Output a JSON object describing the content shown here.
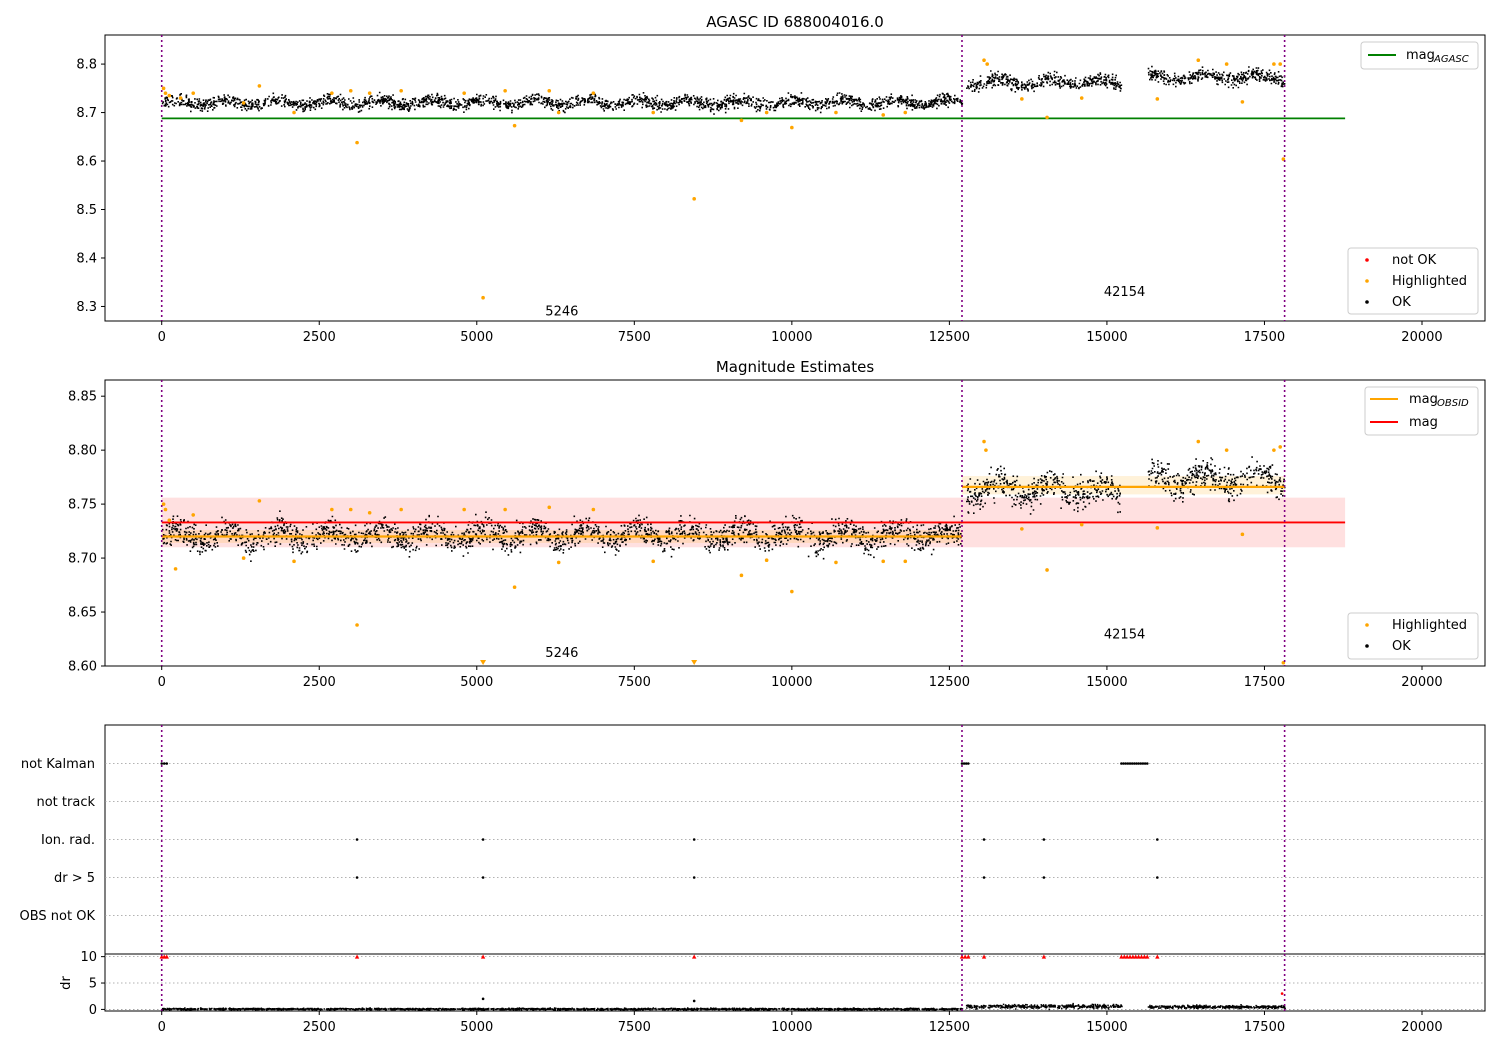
{
  "figure": {
    "background": "#ffffff"
  },
  "chart_data": [
    {
      "type": "scatter",
      "title": "AGASC ID 688004016.0",
      "xlim": [
        -900,
        21000
      ],
      "ylim": [
        8.27,
        8.86
      ],
      "x_ticks": [
        0,
        2500,
        5000,
        7500,
        10000,
        12500,
        15000,
        17500,
        20000
      ],
      "y_ticks": [
        8.3,
        8.4,
        8.5,
        8.6,
        8.7,
        8.8
      ],
      "y_tick_labels": [
        "8.3",
        "8.4",
        "8.5",
        "8.6",
        "8.7",
        "8.8"
      ],
      "grid": false,
      "obsid_boundaries": [
        0,
        12700,
        17820
      ],
      "obsid_labels": [
        {
          "text": "5246",
          "x": 6350,
          "y": 8.29
        },
        {
          "text": "42154",
          "x": 15280,
          "y": 8.33
        }
      ],
      "mag_agasc": 8.688,
      "mag_agasc_range": [
        0,
        18780
      ],
      "segments": [
        {
          "x": [
            0,
            12700
          ],
          "center": 8.722,
          "spread": 0.012
        },
        {
          "x": [
            12760,
            15230
          ],
          "center": 8.764,
          "spread": 0.014
        },
        {
          "x": [
            15640,
            17820
          ],
          "center": 8.774,
          "spread": 0.013
        }
      ],
      "highlighted": [
        [
          30,
          8.75
        ],
        [
          60,
          8.74
        ],
        [
          120,
          8.735
        ],
        [
          300,
          8.73
        ],
        [
          500,
          8.74
        ],
        [
          1300,
          8.72
        ],
        [
          1550,
          8.755
        ],
        [
          2100,
          8.7
        ],
        [
          2700,
          8.74
        ],
        [
          3000,
          8.745
        ],
        [
          3100,
          8.638
        ],
        [
          3300,
          8.74
        ],
        [
          3800,
          8.745
        ],
        [
          4800,
          8.74
        ],
        [
          5100,
          8.318
        ],
        [
          5450,
          8.745
        ],
        [
          5600,
          8.673
        ],
        [
          6150,
          8.745
        ],
        [
          6300,
          8.7
        ],
        [
          6850,
          8.74
        ],
        [
          7800,
          8.7
        ],
        [
          8450,
          8.522
        ],
        [
          9200,
          8.684
        ],
        [
          9600,
          8.7
        ],
        [
          10000,
          8.669
        ],
        [
          10700,
          8.7
        ],
        [
          11450,
          8.695
        ],
        [
          11800,
          8.7
        ],
        [
          13050,
          8.808
        ],
        [
          13100,
          8.8
        ],
        [
          13650,
          8.728
        ],
        [
          14050,
          8.69
        ],
        [
          14600,
          8.73
        ],
        [
          15800,
          8.728
        ],
        [
          16450,
          8.808
        ],
        [
          16900,
          8.8
        ],
        [
          17150,
          8.722
        ],
        [
          17650,
          8.8
        ],
        [
          17750,
          8.8
        ],
        [
          17800,
          8.604
        ]
      ],
      "legend_top": [
        {
          "label": "mag",
          "subscript": "AGASC",
          "color": "#008000"
        }
      ],
      "legend_bottom": [
        {
          "label": "not OK",
          "color": "#ff0000"
        },
        {
          "label": "Highlighted",
          "color": "#ffa500"
        },
        {
          "label": "OK",
          "color": "#000000"
        }
      ]
    },
    {
      "type": "scatter",
      "title": "Magnitude Estimates",
      "xlim": [
        -900,
        21000
      ],
      "ylim": [
        8.6,
        8.865
      ],
      "x_ticks": [
        0,
        2500,
        5000,
        7500,
        10000,
        12500,
        15000,
        17500,
        20000
      ],
      "y_ticks": [
        8.6,
        8.65,
        8.7,
        8.75,
        8.8,
        8.85
      ],
      "y_tick_labels": [
        "8.60",
        "8.65",
        "8.70",
        "8.75",
        "8.80",
        "8.85"
      ],
      "grid": false,
      "obsid_boundaries": [
        0,
        12700,
        17820
      ],
      "obsid_labels": [
        {
          "text": "5246",
          "x": 6350,
          "y": 8.612
        },
        {
          "text": "42154",
          "x": 15280,
          "y": 8.629
        }
      ],
      "mag": 8.733,
      "mag_band": [
        8.71,
        8.756
      ],
      "mag_range": [
        0,
        18780
      ],
      "mag_obsid": [
        {
          "x": [
            0,
            12700
          ],
          "mag": 8.72,
          "band": [
            8.714,
            8.726
          ]
        },
        {
          "x": [
            12700,
            17820
          ],
          "mag": 8.766,
          "band": [
            8.759,
            8.776
          ]
        }
      ],
      "segments": [
        {
          "x": [
            0,
            12700
          ],
          "center": 8.722,
          "spread": 0.012
        },
        {
          "x": [
            12760,
            15230
          ],
          "center": 8.764,
          "spread": 0.014
        },
        {
          "x": [
            15640,
            17820
          ],
          "center": 8.774,
          "spread": 0.013
        }
      ],
      "highlighted": [
        [
          30,
          8.75
        ],
        [
          60,
          8.745
        ],
        [
          120,
          8.735
        ],
        [
          220,
          8.69
        ],
        [
          500,
          8.74
        ],
        [
          1300,
          8.7
        ],
        [
          1550,
          8.753
        ],
        [
          2100,
          8.697
        ],
        [
          2700,
          8.745
        ],
        [
          3000,
          8.745
        ],
        [
          3100,
          8.638
        ],
        [
          3300,
          8.742
        ],
        [
          3800,
          8.745
        ],
        [
          4800,
          8.745
        ],
        [
          5450,
          8.745
        ],
        [
          5600,
          8.673
        ],
        [
          6150,
          8.747
        ],
        [
          6300,
          8.696
        ],
        [
          6850,
          8.745
        ],
        [
          7800,
          8.697
        ],
        [
          9200,
          8.684
        ],
        [
          9600,
          8.698
        ],
        [
          10000,
          8.669
        ],
        [
          10700,
          8.696
        ],
        [
          11450,
          8.697
        ],
        [
          11800,
          8.697
        ],
        [
          13050,
          8.808
        ],
        [
          13080,
          8.8
        ],
        [
          13650,
          8.727
        ],
        [
          14050,
          8.689
        ],
        [
          14600,
          8.731
        ],
        [
          15800,
          8.728
        ],
        [
          16450,
          8.808
        ],
        [
          16900,
          8.8
        ],
        [
          17150,
          8.722
        ],
        [
          17650,
          8.8
        ],
        [
          17750,
          8.803
        ],
        [
          17800,
          8.603
        ]
      ],
      "offscale_markers": [
        5100,
        8450
      ],
      "legend_top": [
        {
          "label": "mag",
          "subscript": "OBSID",
          "color": "#ffa500"
        },
        {
          "label": "mag",
          "subscript": "",
          "color": "#ff0000"
        }
      ],
      "legend_bottom": [
        {
          "label": "Highlighted",
          "color": "#ffa500"
        },
        {
          "label": "OK",
          "color": "#000000"
        }
      ]
    },
    {
      "type": "scatter",
      "title": "",
      "xlim": [
        -900,
        21000
      ],
      "categories": [
        "not Kalman",
        "not track",
        "Ion. rad.",
        "dr > 5",
        "OBS not OK"
      ],
      "flags": {
        "not Kalman": [
          [
            0,
            80
          ],
          [
            12700,
            12800
          ],
          [
            15230,
            15640
          ]
        ],
        "not track": [],
        "Ion. rad.": [
          [
            3100
          ],
          [
            5100
          ],
          [
            8450
          ],
          [
            13050
          ],
          [
            14000
          ],
          [
            15800
          ]
        ],
        "dr > 5": [
          [
            3100
          ],
          [
            5100
          ],
          [
            8450
          ],
          [
            13050
          ],
          [
            14000
          ],
          [
            15800
          ]
        ],
        "OBS not OK": []
      },
      "obsid_boundaries": [
        0,
        12700,
        17820
      ]
    },
    {
      "type": "scatter",
      "title": "",
      "xlim": [
        -900,
        21000
      ],
      "ylim": [
        -0.3,
        10.5
      ],
      "ylabel": "dr",
      "x_ticks": [
        0,
        2500,
        5000,
        7500,
        10000,
        12500,
        15000,
        17500,
        20000
      ],
      "y_ticks": [
        0,
        5,
        10
      ],
      "y_tick_labels": [
        "0",
        "5",
        "10"
      ],
      "obsid_boundaries": [
        0,
        12700,
        17820
      ],
      "dr_segments": [
        {
          "x": [
            0,
            12700
          ],
          "center": 0.2,
          "spread": 0.15
        },
        {
          "x": [
            12760,
            15230
          ],
          "center": 0.7,
          "spread": 0.35
        },
        {
          "x": [
            15640,
            17820
          ],
          "center": 0.6,
          "spread": 0.3
        }
      ],
      "dr_highlighted": [
        [
          5100,
          2.0
        ],
        [
          8450,
          1.6
        ],
        [
          17780,
          3.0
        ]
      ],
      "dr_capped": [
        [
          0,
          80
        ],
        [
          3100
        ],
        [
          5100
        ],
        [
          8450
        ],
        [
          12700,
          12800
        ],
        [
          13050
        ],
        [
          14000
        ],
        [
          15230,
          15640
        ],
        [
          15800
        ]
      ]
    }
  ]
}
